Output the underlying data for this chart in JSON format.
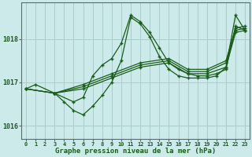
{
  "title": "Graphe pression niveau de la mer (hPa)",
  "background_color": "#cceaea",
  "grid_color": "#aacccc",
  "line_color": "#1a5c1a",
  "marker_color": "#1a5c1a",
  "xlim": [
    -0.5,
    23.5
  ],
  "ylim": [
    1015.7,
    1018.85
  ],
  "yticks": [
    1016,
    1017,
    1018
  ],
  "xticks": [
    0,
    1,
    2,
    3,
    4,
    5,
    6,
    7,
    8,
    9,
    10,
    11,
    12,
    13,
    14,
    15,
    16,
    17,
    18,
    19,
    20,
    21,
    22,
    23
  ],
  "curves": [
    {
      "x": [
        0,
        1,
        3,
        5,
        6,
        7,
        8,
        9,
        10,
        11,
        12,
        13,
        14,
        15,
        16,
        17,
        18,
        19,
        20,
        21,
        22,
        23
      ],
      "y": [
        1016.85,
        1016.95,
        1016.75,
        1016.55,
        1016.65,
        1017.15,
        1017.4,
        1017.55,
        1017.9,
        1018.55,
        1018.4,
        1018.15,
        1017.8,
        1017.45,
        1017.3,
        1017.2,
        1017.15,
        1017.15,
        1017.2,
        1017.3,
        1018.3,
        1018.2
      ]
    },
    {
      "x": [
        3,
        4,
        5,
        6,
        7,
        8,
        9,
        10,
        11,
        12,
        13,
        14,
        15,
        16,
        17,
        18,
        19,
        20,
        21,
        22,
        23
      ],
      "y": [
        1016.75,
        1016.55,
        1016.35,
        1016.25,
        1016.45,
        1016.7,
        1017.0,
        1017.5,
        1018.5,
        1018.35,
        1018.05,
        1017.6,
        1017.3,
        1017.15,
        1017.1,
        1017.1,
        1017.1,
        1017.15,
        1017.35,
        1018.55,
        1018.2
      ]
    },
    {
      "x": [
        0,
        3,
        6,
        9,
        12,
        15,
        17,
        19,
        21,
        22,
        23
      ],
      "y": [
        1016.85,
        1016.75,
        1016.85,
        1017.1,
        1017.35,
        1017.45,
        1017.2,
        1017.2,
        1017.35,
        1018.15,
        1018.2
      ]
    },
    {
      "x": [
        0,
        3,
        6,
        9,
        12,
        15,
        17,
        19,
        21,
        22,
        23
      ],
      "y": [
        1016.85,
        1016.75,
        1016.9,
        1017.15,
        1017.4,
        1017.5,
        1017.25,
        1017.25,
        1017.45,
        1018.2,
        1018.25
      ]
    },
    {
      "x": [
        0,
        3,
        6,
        9,
        12,
        15,
        17,
        19,
        21,
        22,
        23
      ],
      "y": [
        1016.85,
        1016.75,
        1016.95,
        1017.2,
        1017.45,
        1017.55,
        1017.3,
        1017.3,
        1017.5,
        1018.25,
        1018.3
      ]
    }
  ]
}
